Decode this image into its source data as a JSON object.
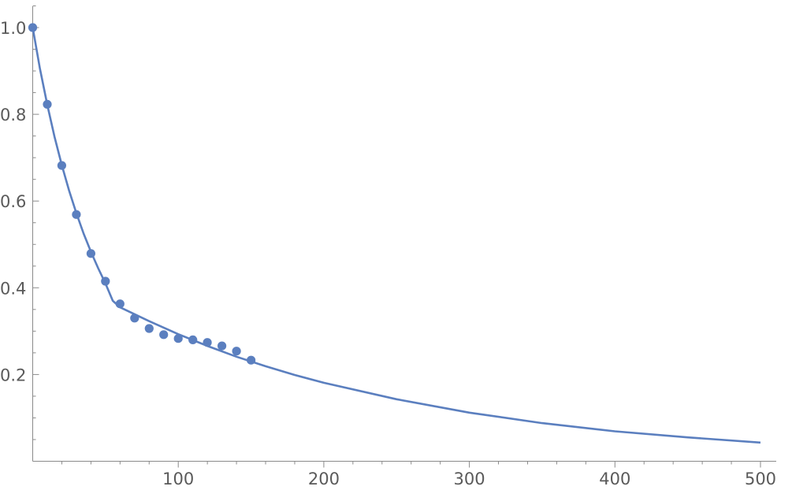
{
  "chart_data": {
    "type": "scatter",
    "title": "",
    "xlabel": "",
    "ylabel": "",
    "xlim": [
      0,
      510
    ],
    "ylim": [
      0,
      1.05
    ],
    "x_ticks": [
      100,
      200,
      300,
      400,
      500
    ],
    "x_tick_labels": [
      "100",
      "200",
      "300",
      "400",
      "500"
    ],
    "y_ticks": [
      0.2,
      0.4,
      0.6,
      0.8,
      1.0
    ],
    "y_tick_labels": [
      "0.2",
      "0.4",
      "0.6",
      "0.8",
      "1.0"
    ],
    "x_minor_step": 20,
    "y_minor_step": 0.05,
    "grid": false,
    "color": "#5b7fbf",
    "series": [
      {
        "kind": "points",
        "x": [
          0,
          10,
          20,
          30,
          40,
          50,
          60,
          70,
          80,
          90,
          100,
          110,
          120,
          130,
          140,
          150
        ],
        "y": [
          1.0,
          0.823,
          0.682,
          0.569,
          0.479,
          0.415,
          0.363,
          0.33,
          0.306,
          0.292,
          0.283,
          0.28,
          0.274,
          0.266,
          0.254,
          0.233
        ]
      },
      {
        "kind": "fit-curve",
        "x": [
          0,
          5,
          10,
          15,
          20,
          25,
          30,
          35,
          40,
          45,
          50,
          55,
          60,
          80,
          100,
          120,
          140,
          160,
          180,
          200,
          250,
          300,
          350,
          400,
          450,
          500
        ],
        "y": [
          1.0,
          0.905,
          0.822,
          0.748,
          0.683,
          0.624,
          0.572,
          0.525,
          0.483,
          0.445,
          0.41,
          0.37,
          0.355,
          0.323,
          0.293,
          0.266,
          0.241,
          0.219,
          0.199,
          0.181,
          0.143,
          0.112,
          0.088,
          0.069,
          0.055,
          0.043
        ]
      }
    ]
  }
}
